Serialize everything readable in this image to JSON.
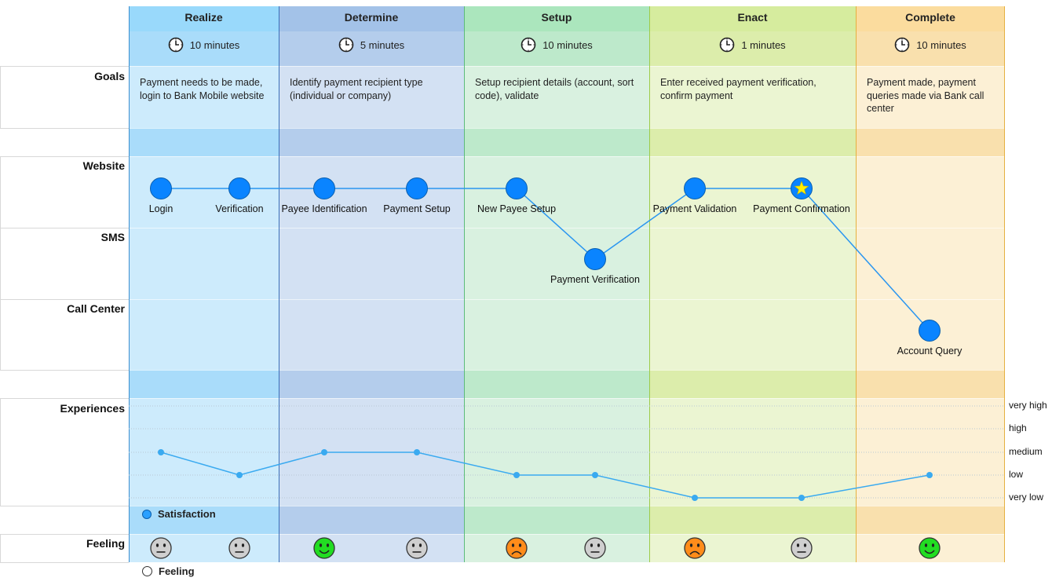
{
  "rows": {
    "goals": "Goals",
    "website": "Website",
    "sms": "SMS",
    "call_center": "Call Center",
    "experiences": "Experiences",
    "feeling": "Feeling"
  },
  "phases": [
    {
      "name": "Realize",
      "duration": "10 minutes",
      "goal": "Payment needs to be made, login to Bank Mobile website",
      "header_color": "#99d9fb",
      "body_color": "#cdebfc",
      "band_color": "#a9dcfa",
      "border_color": "#3b8fd0"
    },
    {
      "name": "Determine",
      "duration": "5 minutes",
      "goal": "Identify payment recipient type (individual or company)",
      "header_color": "#a3c2e8",
      "body_color": "#d3e1f3",
      "band_color": "#b4cdec",
      "border_color": "#3b6fb8"
    },
    {
      "name": "Setup",
      "duration": "10 minutes",
      "goal": "Setup recipient details (account, sort code), validate",
      "header_color": "#abe6bd",
      "body_color": "#d9f1e0",
      "band_color": "#bde9cb",
      "border_color": "#5cbb7a"
    },
    {
      "name": "Enact",
      "duration": "1 minutes",
      "goal": "Enter received payment verification, confirm payment",
      "header_color": "#d6ec9e",
      "body_color": "#ebf5d2",
      "band_color": "#dcedab",
      "border_color": "#9ecb4a"
    },
    {
      "name": "Complete",
      "duration": "10 minutes",
      "goal": "Payment made, payment queries made via Bank call center",
      "header_color": "#fbdc9e",
      "body_color": "#fcf0d5",
      "band_color": "#f9e0ad",
      "border_color": "#e5b040"
    }
  ],
  "touchpoints": [
    {
      "label": "Login",
      "channel": "website",
      "experience": "medium",
      "feeling": "neutral"
    },
    {
      "label": "Verification",
      "channel": "website",
      "experience": "low",
      "feeling": "neutral"
    },
    {
      "label": "Payee Identification",
      "channel": "website",
      "experience": "medium",
      "feeling": "happy"
    },
    {
      "label": "Payment Setup",
      "channel": "website",
      "experience": "medium",
      "feeling": "neutral"
    },
    {
      "label": "New Payee Setup",
      "channel": "website",
      "experience": "low",
      "feeling": "sad"
    },
    {
      "label": "Payment Verification",
      "channel": "sms",
      "experience": "low",
      "feeling": "neutral"
    },
    {
      "label": "Payment Validation",
      "channel": "website",
      "experience": "very low",
      "feeling": "sad"
    },
    {
      "label": "Payment Confirmation",
      "channel": "website",
      "experience": "very low",
      "feeling": "neutral",
      "star": true
    },
    {
      "label": "Account Query",
      "channel": "call_center",
      "experience": "low",
      "feeling": "happy"
    }
  ],
  "experience_levels": [
    "very high",
    "high",
    "medium",
    "low",
    "very low"
  ],
  "legend": {
    "satisfaction": "Satisfaction",
    "feeling": "Feeling"
  },
  "colors": {
    "touchpoint": "#0a84ff",
    "line": "#2a96f0",
    "experience_line": "#3aaaf0",
    "happy": "#22dd22",
    "neutral": "#cfcfcf",
    "sad": "#ff8c1a",
    "star": "#ffee00"
  },
  "icons": {
    "duration": "clock-icon",
    "satisfaction": "satisfaction-icon",
    "feeling": "feeling-icon"
  }
}
